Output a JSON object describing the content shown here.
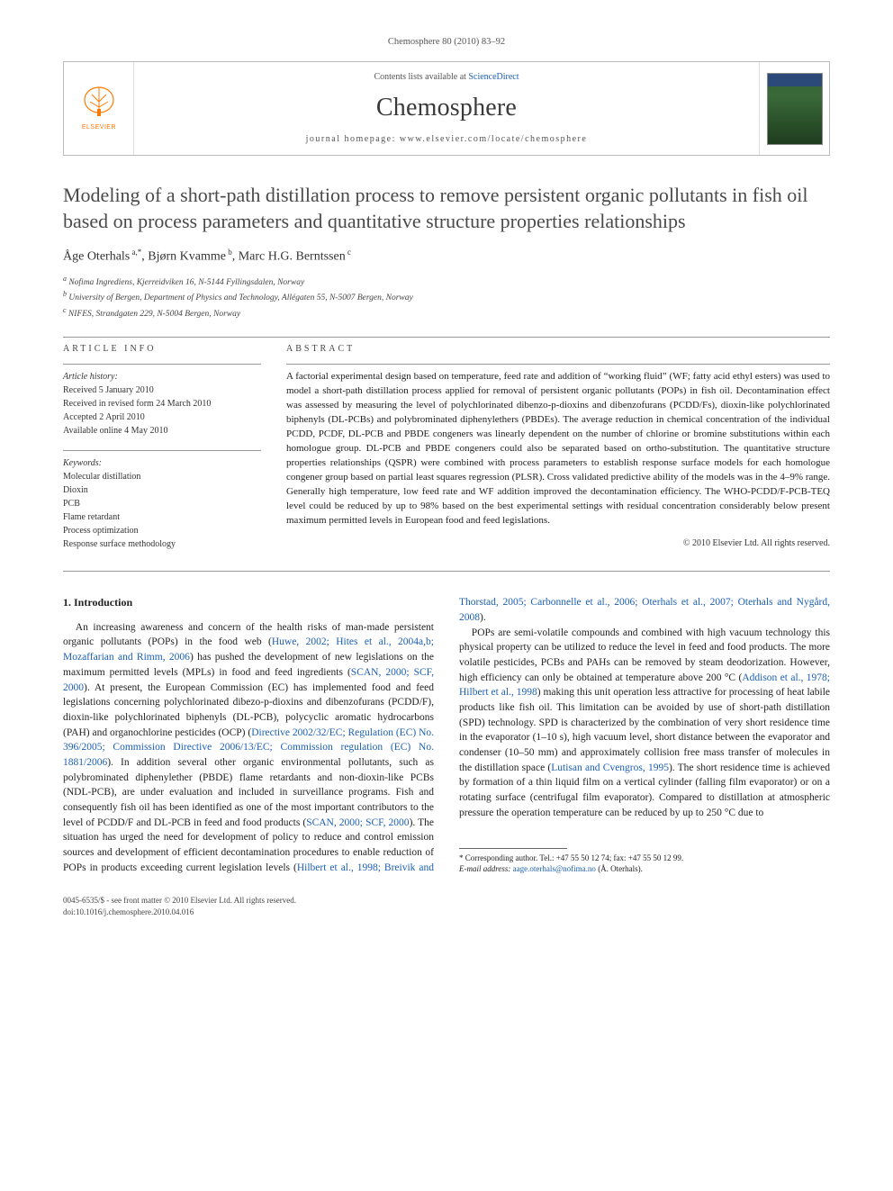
{
  "meta": {
    "running_head": "Chemosphere 80 (2010) 83–92",
    "contents_prefix": "Contents lists available at ",
    "contents_link": "ScienceDirect",
    "journal": "Chemosphere",
    "homepage_prefix": "journal homepage: ",
    "homepage": "www.elsevier.com/locate/chemosphere",
    "elsevier_label": "ELSEVIER"
  },
  "title": "Modeling of a short-path distillation process to remove persistent organic pollutants in fish oil based on process parameters and quantitative structure properties relationships",
  "authors_html": "Åge Oterhals<sup> a,*</sup>, Bjørn Kvamme<sup> b</sup>, Marc H.G. Berntssen<sup> c</sup>",
  "affiliations": {
    "a": "Nofima Ingrediens, Kjerreidviken 16, N-5144 Fyllingsdalen, Norway",
    "b": "University of Bergen, Department of Physics and Technology, Allégaten 55, N-5007 Bergen, Norway",
    "c": "NIFES, Strandgaten 229, N-5004 Bergen, Norway"
  },
  "info": {
    "heading": "article info",
    "history_label": "Article history:",
    "received": "Received 5 January 2010",
    "revised": "Received in revised form 24 March 2010",
    "accepted": "Accepted 2 April 2010",
    "online": "Available online 4 May 2010",
    "keywords_label": "Keywords:",
    "keywords": [
      "Molecular distillation",
      "Dioxin",
      "PCB",
      "Flame retardant",
      "Process optimization",
      "Response surface methodology"
    ]
  },
  "abstract": {
    "heading": "abstract",
    "text": "A factorial experimental design based on temperature, feed rate and addition of “working fluid” (WF; fatty acid ethyl esters) was used to model a short-path distillation process applied for removal of persistent organic pollutants (POPs) in fish oil. Decontamination effect was assessed by measuring the level of polychlorinated dibenzo-p-dioxins and dibenzofurans (PCDD/Fs), dioxin-like polychlorinated biphenyls (DL-PCBs) and polybrominated diphenylethers (PBDEs). The average reduction in chemical concentration of the individual PCDD, PCDF, DL-PCB and PBDE congeners was linearly dependent on the number of chlorine or bromine substitutions within each homologue group. DL-PCB and PBDE congeners could also be separated based on ortho-substitution. The quantitative structure properties relationships (QSPR) were combined with process parameters to establish response surface models for each homologue congener group based on partial least squares regression (PLSR). Cross validated predictive ability of the models was in the 4–9% range. Generally high temperature, low feed rate and WF addition improved the decontamination efficiency. The WHO-PCDD/F-PCB-TEQ level could be reduced by up to 98% based on the best experimental settings with residual concentration considerably below present maximum permitted levels in European food and feed legislations.",
    "copyright": "© 2010 Elsevier Ltd. All rights reserved."
  },
  "body": {
    "section1_title": "1. Introduction",
    "p1_a": "An increasing awareness and concern of the health risks of man-made persistent organic pollutants (POPs) in the food web (",
    "p1_link1": "Huwe, 2002; Hites et al., 2004a,b; Mozaffarian and Rimm, 2006",
    "p1_b": ") has pushed the development of new legislations on the maximum permitted levels (MPLs) in food and feed ingredients (",
    "p1_link2": "SCAN, 2000; SCF, 2000",
    "p1_c": "). At present, the European Commission (EC) has implemented food and feed legislations concerning polychlorinated dibezo-p-dioxins and dibenzofurans (PCDD/F), dioxin-like polychlorinated biphenyls (DL-PCB), polycyclic aromatic hydrocarbons (PAH) and organochlorine pesticides (OCP) (",
    "p1_link3": "Directive 2002/32/EC; Regulation (EC) No. 396/2005; Commission Directive 2006/13/EC; Commission regulation (EC) No. 1881/2006",
    "p1_d": "). In addition several other organic environmental pollutants, such as polybrominated diphenylether (PBDE) flame retardants and non-dioxin-like PCBs (NDL-PCB), are under evaluation and included in surveillance programs. Fish and consequently fish oil has been identified as one of the most important contributors to the level of PCDD/F and DL-PCB in feed and food products (",
    "p1_link4": "SCAN, 2000;",
    "p1_link4b": "SCF, 2000",
    "p1_e": "). The situation has urged the need for development of policy to reduce and control emission sources and development of efficient decontamination procedures to enable reduction of POPs in products exceeding current legislation levels (",
    "p1_link5": "Hilbert et al., 1998; Breivik and Thorstad, 2005; Carbonnelle et al., 2006; Oterhals et al., 2007; Oterhals and Nygård, 2008",
    "p1_f": ").",
    "p2_a": "POPs are semi-volatile compounds and combined with high vacuum technology this physical property can be utilized to reduce the level in feed and food products. The more volatile pesticides, PCBs and PAHs can be removed by steam deodorization. However, high efficiency can only be obtained at temperature above 200 °C (",
    "p2_link1": "Addison et al., 1978; Hilbert et al., 1998",
    "p2_b": ") making this unit operation less attractive for processing of heat labile products like fish oil. This limitation can be avoided by use of short-path distillation (SPD) technology. SPD is characterized by the combination of very short residence time in the evaporator (1–10 s), high vacuum level, short distance between the evaporator and condenser (10–50 mm) and approximately collision free mass transfer of molecules in the distillation space (",
    "p2_link2": "Lutisan and Cvengros, 1995",
    "p2_c": "). The short residence time is achieved by formation of a thin liquid film on a vertical cylinder (falling film evaporator) or on a rotating surface (centrifugal film evaporator). Compared to distillation at atmospheric pressure the operation temperature can be reduced by up to 250 °C due to"
  },
  "footnote": {
    "corr": "* Corresponding author. Tel.: +47 55 50 12 74; fax: +47 55 50 12 99.",
    "email_label": "E-mail address:",
    "email": "aage.oterhals@nofima.no",
    "email_who": "(Å. Oterhals)."
  },
  "footer": {
    "line1": "0045-6535/$ - see front matter © 2010 Elsevier Ltd. All rights reserved.",
    "line2": "doi:10.1016/j.chemosphere.2010.04.016"
  },
  "colors": {
    "link": "#1b5fb3",
    "text": "#222222",
    "rule": "#999999",
    "elsevier_orange": "#ff7a00"
  }
}
